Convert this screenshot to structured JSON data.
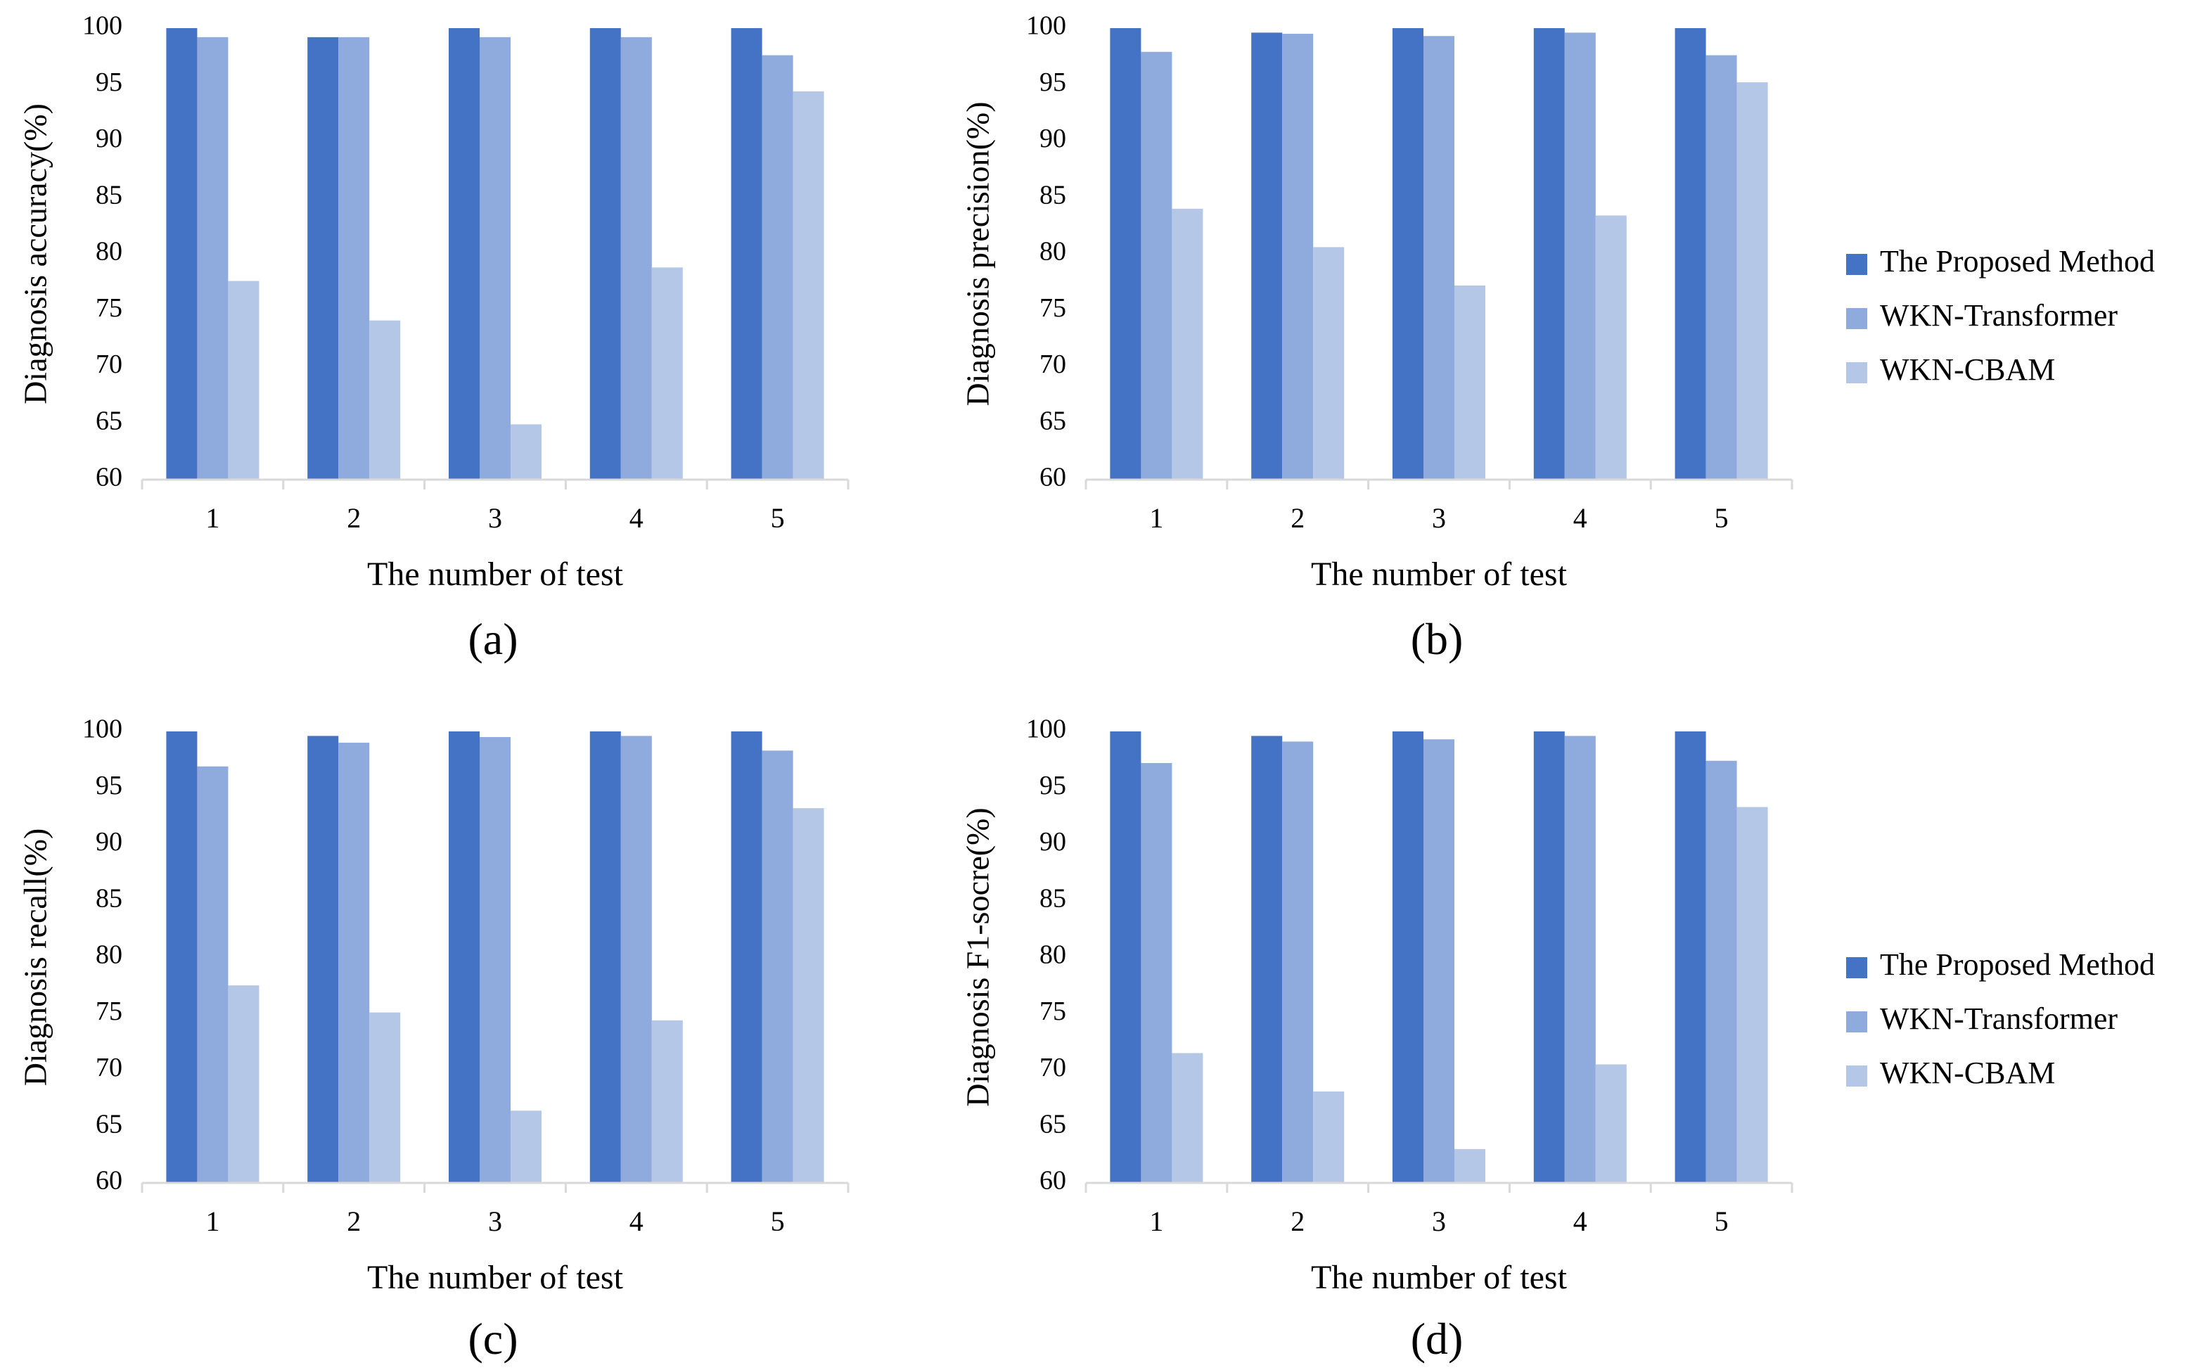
{
  "colors": {
    "series": [
      "#4472C4",
      "#8FAADC",
      "#B4C7E7"
    ],
    "axis": "#D9D9D9",
    "text": "#000000"
  },
  "legend_top": {
    "entries": [
      "The Proposed Method",
      "WKN-Transformer",
      "WKN-CBAM"
    ]
  },
  "legend_bottom": {
    "entries": [
      "The Proposed Method",
      "WKN-Transformer",
      "WKN-CBAM"
    ]
  },
  "chart_data": [
    {
      "type": "bar",
      "title": "",
      "caption": "(a)",
      "xlabel": "The number of test",
      "ylabel": "Diagnosis accuracy(%)",
      "ylim": [
        60,
        100
      ],
      "yticks": [
        60,
        65,
        70,
        75,
        80,
        85,
        90,
        95,
        100
      ],
      "categories": [
        "1",
        "2",
        "3",
        "4",
        "5"
      ],
      "series": [
        {
          "name": "The Proposed Method",
          "values": [
            100,
            99.2,
            100,
            100,
            100
          ]
        },
        {
          "name": "WKN-Transformer",
          "values": [
            99.2,
            99.2,
            99.2,
            99.2,
            97.6
          ]
        },
        {
          "name": "WKN-CBAM",
          "values": [
            77.6,
            74.1,
            64.9,
            78.8,
            94.4
          ]
        }
      ],
      "legend": "right",
      "grid": false
    },
    {
      "type": "bar",
      "title": "",
      "caption": "(b)",
      "xlabel": "The number of test",
      "ylabel": "Diagnosis precision(%)",
      "ylim": [
        60,
        100
      ],
      "yticks": [
        60,
        65,
        70,
        75,
        80,
        85,
        90,
        95,
        100
      ],
      "categories": [
        "1",
        "2",
        "3",
        "4",
        "5"
      ],
      "series": [
        {
          "name": "The Proposed Method",
          "values": [
            100,
            99.6,
            100,
            100,
            100
          ]
        },
        {
          "name": "WKN-Transformer",
          "values": [
            97.9,
            99.5,
            99.3,
            99.6,
            97.6
          ]
        },
        {
          "name": "WKN-CBAM",
          "values": [
            84.0,
            80.6,
            77.2,
            83.4,
            95.2
          ]
        }
      ],
      "legend": "right",
      "grid": false
    },
    {
      "type": "bar",
      "title": "",
      "caption": "(c)",
      "xlabel": "The number of test",
      "ylabel": "Diagnosis recall(%)",
      "ylim": [
        60,
        100
      ],
      "yticks": [
        60,
        65,
        70,
        75,
        80,
        85,
        90,
        95,
        100
      ],
      "categories": [
        "1",
        "2",
        "3",
        "4",
        "5"
      ],
      "series": [
        {
          "name": "The Proposed Method",
          "values": [
            100,
            99.6,
            100,
            100,
            100
          ]
        },
        {
          "name": "WKN-Transformer",
          "values": [
            96.9,
            99.0,
            99.5,
            99.6,
            98.3
          ]
        },
        {
          "name": "WKN-CBAM",
          "values": [
            77.5,
            75.1,
            66.4,
            74.4,
            93.2
          ]
        }
      ],
      "legend": "right",
      "grid": false
    },
    {
      "type": "bar",
      "title": "",
      "caption": "(d)",
      "xlabel": "The number of test",
      "ylabel": "Diagnosis F1-socre(%)",
      "ylim": [
        60,
        100
      ],
      "yticks": [
        60,
        65,
        70,
        75,
        80,
        85,
        90,
        95,
        100
      ],
      "categories": [
        "1",
        "2",
        "3",
        "4",
        "5"
      ],
      "series": [
        {
          "name": "The Proposed Method",
          "values": [
            100,
            99.6,
            100,
            100,
            100
          ]
        },
        {
          "name": "WKN-Transformer",
          "values": [
            97.2,
            99.1,
            99.3,
            99.6,
            97.4
          ]
        },
        {
          "name": "WKN-CBAM",
          "values": [
            71.5,
            68.1,
            63.0,
            70.5,
            93.3
          ]
        }
      ],
      "legend": "right",
      "grid": false
    }
  ]
}
